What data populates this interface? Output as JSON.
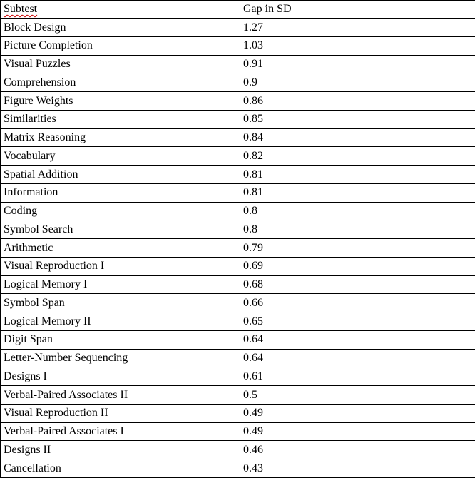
{
  "table": {
    "columns": [
      {
        "label": "Subtest",
        "spellcheck_underline": true
      },
      {
        "label": "Gap in SD",
        "spellcheck_underline": false
      }
    ],
    "rows": [
      {
        "subtest": "Block Design",
        "gap_in_sd": "1.27"
      },
      {
        "subtest": "Picture Completion",
        "gap_in_sd": "1.03"
      },
      {
        "subtest": "Visual Puzzles",
        "gap_in_sd": "0.91"
      },
      {
        "subtest": "Comprehension",
        "gap_in_sd": "0.9"
      },
      {
        "subtest": "Figure Weights",
        "gap_in_sd": "0.86"
      },
      {
        "subtest": "Similarities",
        "gap_in_sd": "0.85"
      },
      {
        "subtest": "Matrix Reasoning",
        "gap_in_sd": "0.84"
      },
      {
        "subtest": "Vocabulary",
        "gap_in_sd": "0.82"
      },
      {
        "subtest": "Spatial Addition",
        "gap_in_sd": "0.81"
      },
      {
        "subtest": "Information",
        "gap_in_sd": "0.81"
      },
      {
        "subtest": "Coding",
        "gap_in_sd": "0.8"
      },
      {
        "subtest": "Symbol Search",
        "gap_in_sd": "0.8"
      },
      {
        "subtest": "Arithmetic",
        "gap_in_sd": "0.79"
      },
      {
        "subtest": "Visual Reproduction I",
        "gap_in_sd": "0.69"
      },
      {
        "subtest": "Logical Memory I",
        "gap_in_sd": "0.68"
      },
      {
        "subtest": "Symbol Span",
        "gap_in_sd": "0.66"
      },
      {
        "subtest": "Logical Memory II",
        "gap_in_sd": "0.65"
      },
      {
        "subtest": "Digit Span",
        "gap_in_sd": "0.64"
      },
      {
        "subtest": "Letter-Number Sequencing",
        "gap_in_sd": "0.64"
      },
      {
        "subtest": "Designs I",
        "gap_in_sd": "0.61"
      },
      {
        "subtest": "Verbal-Paired Associates II",
        "gap_in_sd": "0.5"
      },
      {
        "subtest": "Visual Reproduction II",
        "gap_in_sd": "0.49"
      },
      {
        "subtest": "Verbal-Paired Associates I",
        "gap_in_sd": "0.49"
      },
      {
        "subtest": "Designs II",
        "gap_in_sd": "0.46"
      },
      {
        "subtest": "Cancellation",
        "gap_in_sd": "0.43"
      }
    ]
  },
  "colors": {
    "border": "#000000",
    "text": "#000000",
    "background": "#ffffff",
    "spellcheck_underline": "#cc0000"
  }
}
